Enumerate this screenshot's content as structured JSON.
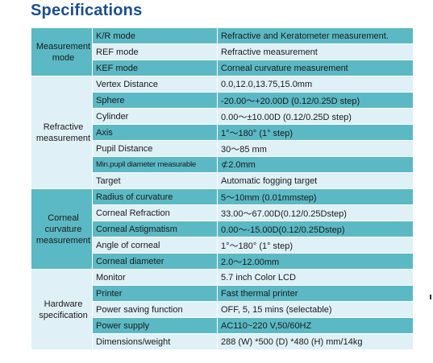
{
  "title": "Specifications",
  "groups": [
    {
      "name": "Measurement\nmode",
      "rows": [
        {
          "item": "K/R mode",
          "value": "Refractive and Keratometer measurement."
        },
        {
          "item": "REF mode",
          "value": "Refractive measurement"
        },
        {
          "item": "KEF mode",
          "value": "Corneal curvature measurement"
        }
      ]
    },
    {
      "name": "Refractive\nmeasurement",
      "rows": [
        {
          "item": "Vertex Distance",
          "value": "0.0,12.0,13.75,15.0mm"
        },
        {
          "item": "Sphere",
          "value": "-20.00～+20.00D (0.12/0.25D step)"
        },
        {
          "item": "Cylinder",
          "value": "0.00～±10.00D (0.12/0.25D step)"
        },
        {
          "item": "Axis",
          "value": "1°～180°  (1°  step)"
        },
        {
          "item": "Pupil Distance",
          "value": "30～85 mm"
        },
        {
          "item": "Min.pupil diameter measurable",
          "value": "⊄2.0mm"
        },
        {
          "item": "Target",
          "value": "Automatic fogging target"
        }
      ]
    },
    {
      "name": "Corneal\ncurvature\nmeasurement",
      "rows": [
        {
          "item": "Radius of curvature",
          "value": "5～10mm  (0.01mmstep)"
        },
        {
          "item": "Corneal Refraction",
          "value": "33.00～67.00D(0.12/0.25Dstep)"
        },
        {
          "item": "Corneal Astigmatism",
          "value": "0.00～-15.00D(0.12/0.25Dstep)"
        },
        {
          "item": "Angle of corneal",
          "value": "1°～180°  (1°  step)"
        },
        {
          "item": "Corneal diameter",
          "value": "2.0～12.00mm"
        }
      ]
    },
    {
      "name": "Hardware\nspecification",
      "rows": [
        {
          "item": "Monitor",
          "value": "5.7 inch Color LCD"
        },
        {
          "item": "Printer",
          "value": "Fast thermal printer"
        },
        {
          "item": "Power saving function",
          "value": "OFF, 5, 15 mins (selectable)"
        },
        {
          "item": "Power supply",
          "value": "AC110~220 V,50/60HZ"
        },
        {
          "item": "Dimensions/weight",
          "value": "288 (W) *500 (D) *480 (H) mm/14kg"
        }
      ]
    }
  ],
  "colors": {
    "dark": "#5bb9c5",
    "light": "#dff0f7",
    "title": "#1b4f8c"
  }
}
